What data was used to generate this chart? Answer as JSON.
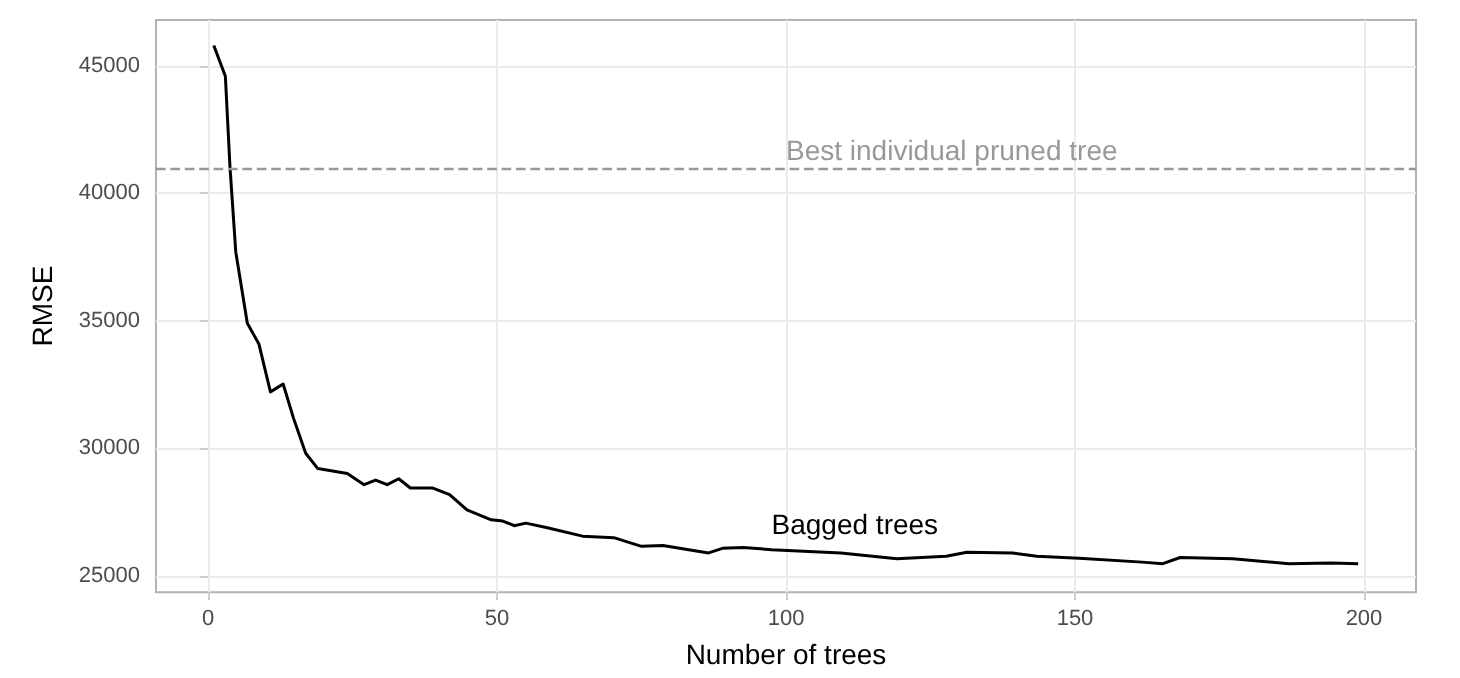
{
  "chart_data": {
    "type": "line",
    "xlabel": "Number of trees",
    "ylabel": "RMSE",
    "x": [
      1,
      3,
      3.8,
      4.8,
      6.8,
      8.8,
      10.8,
      13,
      14.8,
      16.9,
      19,
      24.1,
      27,
      29,
      31,
      33,
      35,
      38.8,
      41.8,
      44.8,
      49,
      51,
      53,
      55,
      58.7,
      64.8,
      70.2,
      75,
      78.7,
      86.6,
      89,
      92.6,
      97.5,
      109.5,
      119.2,
      127.7,
      131.3,
      139.2,
      143.4,
      150.7,
      161.6,
      165.2,
      168.2,
      177.3,
      187,
      194.3,
      199
    ],
    "series": [
      {
        "name": "Bagged trees",
        "color": "#000000",
        "values": [
          45800,
          44590,
          41040,
          37700,
          34900,
          34090,
          32210,
          32520,
          31170,
          29800,
          29200,
          29010,
          28570,
          28750,
          28570,
          28800,
          28440,
          28440,
          28180,
          27580,
          27190,
          27140,
          26960,
          27060,
          26880,
          26550,
          26490,
          26150,
          26180,
          25890,
          26070,
          26100,
          26020,
          25890,
          25660,
          25760,
          25920,
          25890,
          25760,
          25680,
          25530,
          25470,
          25710,
          25660,
          25470,
          25500,
          25470
        ]
      }
    ],
    "xlim": [
      -9,
      209
    ],
    "xticks": [
      0,
      50,
      100,
      150,
      200
    ],
    "ylim": [
      24350,
      46800
    ],
    "yticks": [
      25000,
      30000,
      35000,
      40000,
      45000
    ],
    "ref_lines": [
      {
        "axis": "y",
        "value": 41000,
        "label": "Best individual pruned tree",
        "color": "#999999",
        "line_style": "dashed"
      }
    ],
    "grid": true,
    "marker": "none",
    "line_style": "solid"
  }
}
